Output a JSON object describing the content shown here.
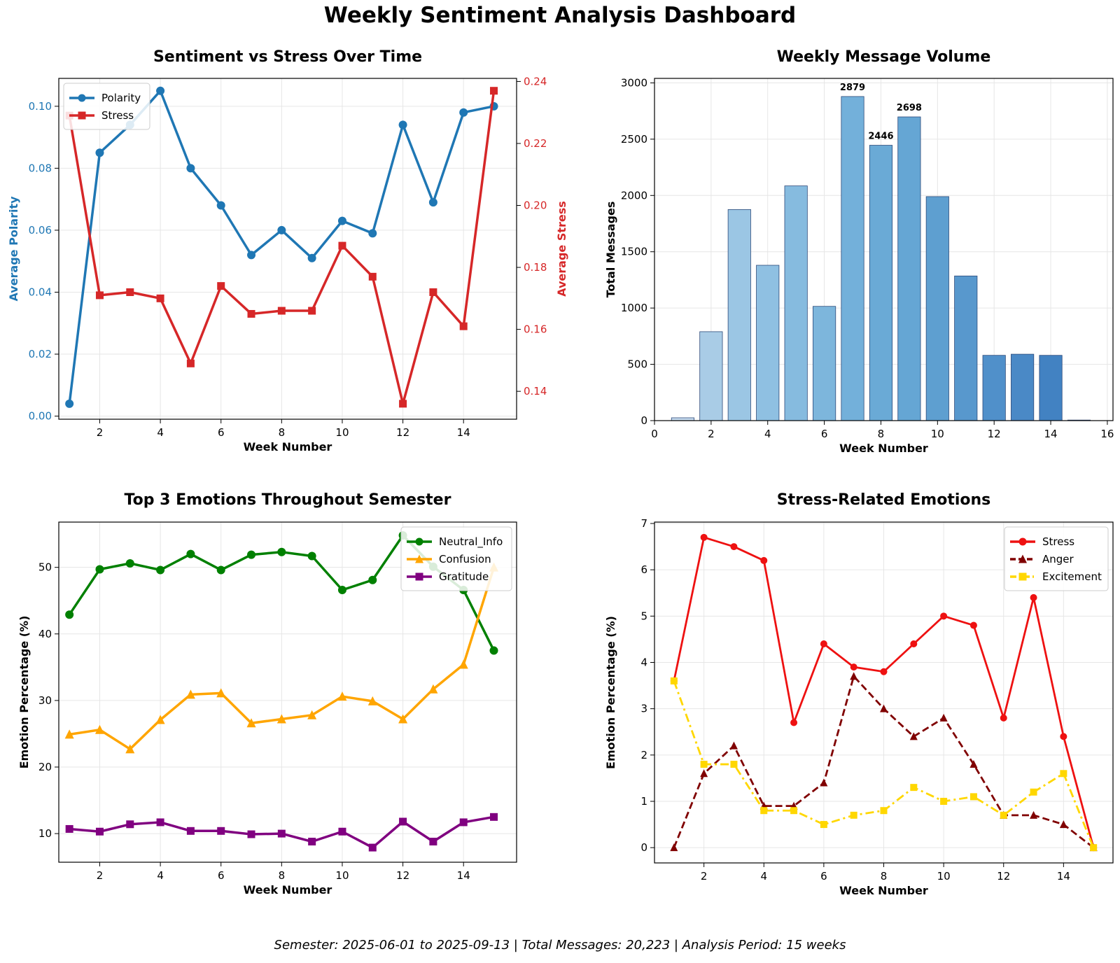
{
  "title": "Weekly Sentiment Analysis Dashboard",
  "footer": "Semester: 2025-06-01 to 2025-09-13 | Total Messages: 20,223 | Analysis Period: 15 weeks",
  "chart_data": [
    {
      "type": "line",
      "title": "Sentiment vs Stress Over Time",
      "xlabel": "Week Number",
      "ylabel": "Average Polarity",
      "y2label": "Average Stress",
      "xlim": [
        0.65,
        15.75
      ],
      "xticks": [
        2,
        4,
        6,
        8,
        10,
        12,
        14
      ],
      "ylim": [
        -0.001,
        0.109
      ],
      "yticks": [
        0.0,
        0.02,
        0.04,
        0.06,
        0.08,
        0.1
      ],
      "y2lim": [
        0.131,
        0.241
      ],
      "y2ticks": [
        0.14,
        0.16,
        0.18,
        0.2,
        0.22,
        0.24
      ],
      "grid": true,
      "legend": "top-left",
      "x": [
        1,
        2,
        3,
        4,
        5,
        6,
        7,
        8,
        9,
        10,
        11,
        12,
        13,
        14,
        15
      ],
      "series": [
        {
          "name": "Polarity",
          "axis": "left",
          "color": "#1f77b4",
          "marker": "circle",
          "values": [
            0.004,
            0.085,
            0.094,
            0.105,
            0.08,
            0.068,
            0.052,
            0.06,
            0.051,
            0.063,
            0.059,
            0.094,
            0.069,
            0.098,
            0.1
          ]
        },
        {
          "name": "Stress",
          "axis": "right",
          "color": "#d62728",
          "marker": "square",
          "values": [
            0.229,
            0.171,
            0.172,
            0.17,
            0.149,
            0.174,
            0.165,
            0.166,
            0.166,
            0.187,
            0.177,
            0.136,
            0.172,
            0.161,
            0.237
          ]
        }
      ]
    },
    {
      "type": "bar",
      "title": "Weekly Message Volume",
      "xlabel": "Week Number",
      "ylabel": "Total Messages",
      "xlim": [
        0,
        16.2
      ],
      "xticks": [
        0,
        2,
        4,
        6,
        8,
        10,
        12,
        14,
        16
      ],
      "ylim": [
        0,
        3040
      ],
      "yticks": [
        0,
        500,
        1000,
        1500,
        2000,
        2500,
        3000
      ],
      "grid": true,
      "x": [
        1,
        2,
        3,
        4,
        5,
        6,
        7,
        8,
        9,
        10,
        11,
        12,
        13,
        14,
        15
      ],
      "values": [
        25,
        790,
        1875,
        1380,
        2085,
        1015,
        2879,
        2446,
        2698,
        1990,
        1285,
        580,
        590,
        580,
        5
      ],
      "labeled_values": [
        "",
        "",
        "",
        "",
        "",
        "",
        "2879",
        "2446",
        "2698",
        "",
        "",
        "",
        "",
        "",
        ""
      ],
      "colors": [
        "#c6dbef",
        "#a9cce6",
        "#9bc6e4",
        "#8fc0e2",
        "#86bbdf",
        "#7db6dc",
        "#73b0da",
        "#6aaad6",
        "#65a6d4",
        "#5e9fd0",
        "#5898cd",
        "#5090ca",
        "#4a89c6",
        "#4282c2",
        "#3a7bbf"
      ]
    },
    {
      "type": "line",
      "title": "Top 3 Emotions Throughout Semester",
      "xlabel": "Week Number",
      "ylabel": "Emotion Percentage (%)",
      "xlim": [
        0.65,
        15.75
      ],
      "xticks": [
        2,
        4,
        6,
        8,
        10,
        12,
        14
      ],
      "ylim": [
        5.7,
        56.8
      ],
      "yticks": [
        10,
        20,
        30,
        40,
        50
      ],
      "grid": true,
      "legend": "top-right",
      "x": [
        1,
        2,
        3,
        4,
        5,
        6,
        7,
        8,
        9,
        10,
        11,
        12,
        13,
        14,
        15
      ],
      "series": [
        {
          "name": "Neutral_Info",
          "color": "#008000",
          "marker": "circle",
          "values": [
            42.9,
            49.7,
            50.6,
            49.6,
            52.0,
            49.6,
            51.9,
            52.3,
            51.7,
            46.6,
            48.1,
            54.8,
            50.1,
            46.6,
            37.5
          ]
        },
        {
          "name": "Confusion",
          "color": "#ffa500",
          "marker": "triangle",
          "values": [
            24.9,
            25.6,
            22.7,
            27.1,
            30.9,
            31.1,
            26.6,
            27.2,
            27.8,
            30.6,
            29.9,
            27.2,
            31.7,
            35.4,
            50.0
          ]
        },
        {
          "name": "Gratitude",
          "color": "#800080",
          "marker": "square",
          "values": [
            10.7,
            10.3,
            11.4,
            11.7,
            10.4,
            10.4,
            9.9,
            10.0,
            8.8,
            10.3,
            7.9,
            11.8,
            8.8,
            11.7,
            12.5
          ]
        }
      ]
    },
    {
      "type": "line",
      "title": "Stress-Related Emotions",
      "xlabel": "Week Number",
      "ylabel": "Emotion Percentage (%)",
      "xlim": [
        0.35,
        15.65
      ],
      "xticks": [
        2,
        4,
        6,
        8,
        10,
        12,
        14
      ],
      "ylim": [
        -0.33,
        7.03
      ],
      "yticks": [
        0,
        1,
        2,
        3,
        4,
        5,
        6,
        7
      ],
      "grid": true,
      "legend": "top-right",
      "x": [
        1,
        2,
        3,
        4,
        5,
        6,
        7,
        8,
        9,
        10,
        11,
        12,
        13,
        14,
        15
      ],
      "series": [
        {
          "name": "Stress",
          "color": "#ee1111",
          "marker": "circle",
          "dash": "solid",
          "values": [
            3.6,
            6.7,
            6.5,
            6.2,
            2.7,
            4.4,
            3.9,
            3.8,
            4.4,
            5.0,
            4.8,
            2.8,
            5.4,
            2.4,
            0.0
          ]
        },
        {
          "name": "Anger",
          "color": "#800000",
          "marker": "triangle",
          "dash": "dashed",
          "values": [
            0.0,
            1.6,
            2.2,
            0.9,
            0.9,
            1.4,
            3.7,
            3.0,
            2.4,
            2.8,
            1.8,
            0.7,
            0.7,
            0.5,
            0.0
          ]
        },
        {
          "name": "Excitement",
          "color": "#ffd700",
          "marker": "square",
          "dash": "dashdot",
          "values": [
            3.6,
            1.8,
            1.8,
            0.8,
            0.8,
            0.5,
            0.7,
            0.8,
            1.3,
            1.0,
            1.1,
            0.7,
            1.2,
            1.6,
            0.0
          ]
        }
      ]
    }
  ]
}
